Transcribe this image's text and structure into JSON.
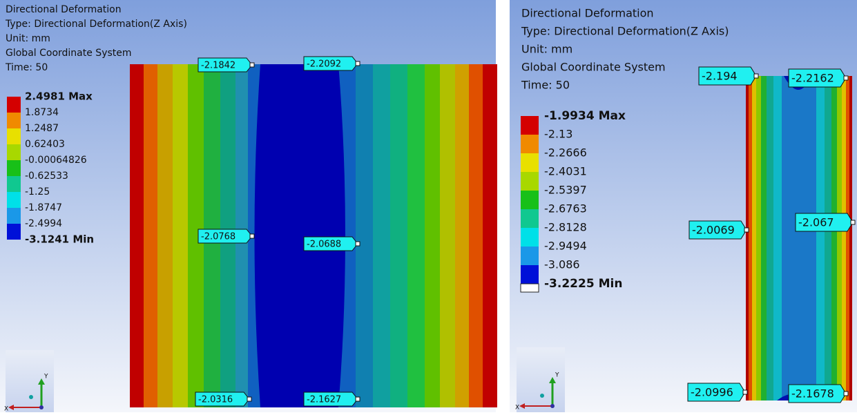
{
  "panels": [
    {
      "header": [
        "Directional Deformation",
        "Type: Directional Deformation(Z Axis)",
        "Unit: mm",
        "Global Coordinate System",
        "Time: 50"
      ],
      "legend": [
        "2.4981 Max",
        "1.8734",
        "1.2487",
        "0.62403",
        "-0.00064826",
        "-0.62533",
        "-1.25",
        "-1.8747",
        "-2.4994",
        "-3.1241 Min"
      ],
      "probes": [
        "-2.1842",
        "-2.2092",
        "-2.0768",
        "-2.0688",
        "-2.0316",
        "-2.1627"
      ],
      "triad": {
        "x": "X",
        "y": "Y"
      }
    },
    {
      "header": [
        "Directional Deformation",
        "Type: Directional Deformation(Z Axis)",
        "Unit: mm",
        "Global Coordinate System",
        "Time: 50"
      ],
      "legend": [
        "-1.9934 Max",
        "-2.13",
        "-2.2666",
        "-2.4031",
        "-2.5397",
        "-2.6763",
        "-2.8128",
        "-2.9494",
        "-3.086",
        "-3.2225 Min"
      ],
      "probes": [
        "-2.194",
        "-2.2162",
        "-2.0069",
        "-2.067",
        "-2.0996",
        "-2.1678"
      ],
      "triad": {
        "x": "X",
        "y": "Y"
      }
    }
  ]
}
